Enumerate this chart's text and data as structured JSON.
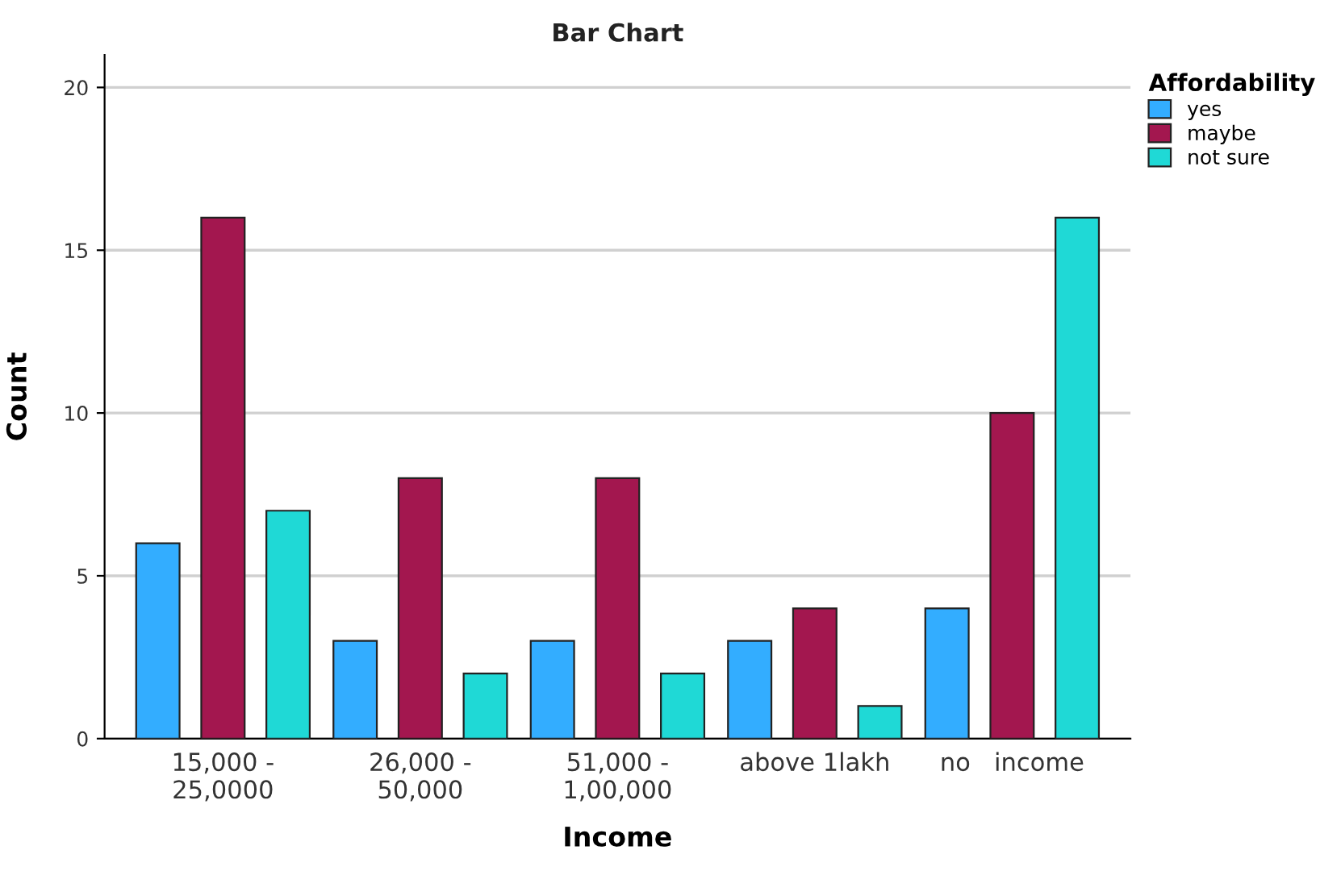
{
  "chart_data": {
    "type": "bar",
    "title": "Bar Chart",
    "xlabel": "Income",
    "ylabel": "Count",
    "legend_title": "Affordability",
    "categories": [
      "15,000 -\n25,0000",
      "26,000 -\n50,000",
      "51,000 -\n1,00,000",
      "above 1lakh",
      "no   income"
    ],
    "series": [
      {
        "name": "yes",
        "color": "#33adff",
        "values": [
          6,
          3,
          3,
          3,
          4
        ]
      },
      {
        "name": "maybe",
        "color": "#a3174f",
        "values": [
          16,
          8,
          8,
          4,
          10
        ]
      },
      {
        "name": "not sure",
        "color": "#1fd9d6",
        "values": [
          7,
          2,
          2,
          1,
          16
        ]
      }
    ],
    "ylim": [
      0,
      21
    ],
    "yticks": [
      0,
      5,
      10,
      15,
      20
    ],
    "grid": "y",
    "legend": "top right"
  }
}
